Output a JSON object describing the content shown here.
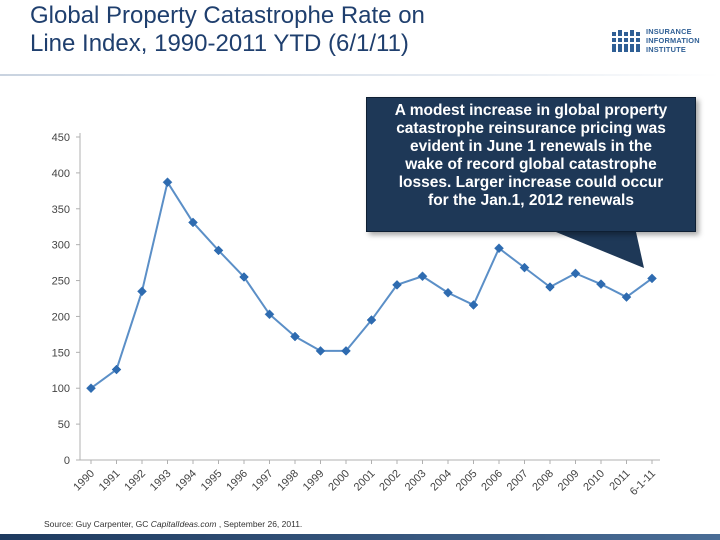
{
  "title": {
    "line1": "Global Property Catastrophe Rate on",
    "line2": "Line Index, 1990-2011 YTD (6/1/11)"
  },
  "logo": {
    "line1": "INSURANCE",
    "line2": "INFORMATION",
    "line3": "INSTITUTE",
    "color": "#2f5f95"
  },
  "callout": {
    "lines": [
      "A modest increase in global property",
      "catastrophe reinsurance pricing was",
      "evident in June 1 renewals in the",
      "wake of record global catastrophe",
      "losses.  Larger increase could occur",
      "for the Jan.1, 2012 renewals"
    ]
  },
  "source": {
    "prefix": "Source:  Guy Carpenter,  GC ",
    "italic": "CapitalIdeas.com",
    "suffix": " , September 26, 2011."
  },
  "chart_data": {
    "type": "line",
    "title": "Global Property Catastrophe Rate on Line Index, 1990-2011 YTD (6/1/11)",
    "categories": [
      "1990",
      "1991",
      "1992",
      "1993",
      "1994",
      "1995",
      "1996",
      "1997",
      "1998",
      "1999",
      "2000",
      "2001",
      "2002",
      "2003",
      "2004",
      "2005",
      "2006",
      "2007",
      "2008",
      "2009",
      "2010",
      "2011",
      "6-1-11"
    ],
    "series": [
      {
        "values": [
          100,
          126,
          235,
          387,
          331,
          292,
          255,
          203,
          172,
          152,
          152,
          195,
          244,
          256,
          233,
          216,
          295,
          268,
          241,
          260,
          245,
          227,
          253
        ],
        "color": "#5b8fc7"
      }
    ],
    "xlabel": "",
    "ylabel": "",
    "ylim": [
      0,
      450
    ],
    "yticks": [
      0,
      50,
      100,
      150,
      200,
      250,
      300,
      350,
      400,
      450
    ],
    "grid": false,
    "legend": "none"
  }
}
